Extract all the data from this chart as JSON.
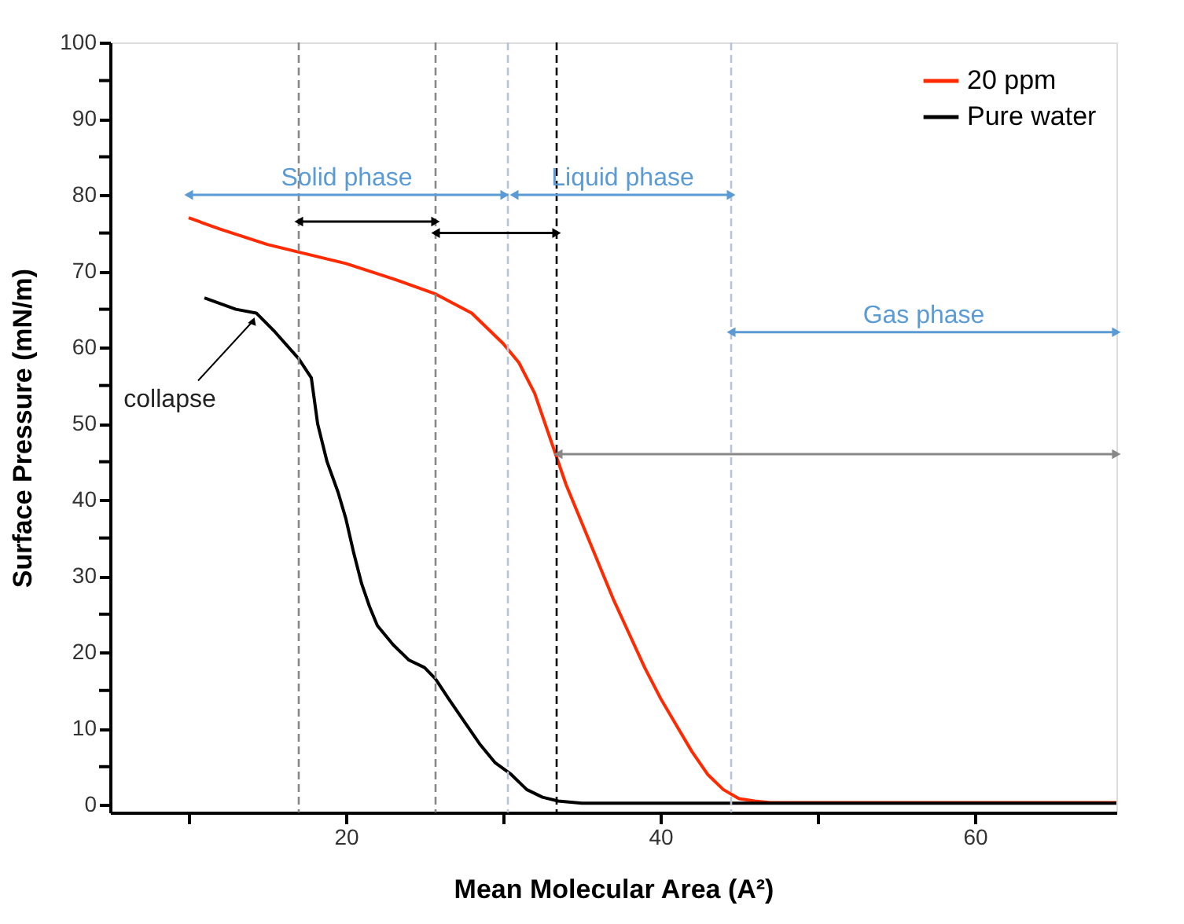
{
  "chart_data": {
    "type": "line",
    "xlabel": "Mean Molecular Area (A²)",
    "ylabel": "Surface Pressure (mN/m)",
    "xlim": [
      5,
      69
    ],
    "ylim": [
      -1,
      100
    ],
    "xticks": [
      {
        "value": 10,
        "label": null
      },
      20,
      {
        "value": 30,
        "label": null
      },
      40,
      {
        "value": 50,
        "label": null
      },
      60
    ],
    "yticks": [
      0,
      {
        "value": 5,
        "label": null
      },
      10,
      {
        "value": 15,
        "label": null
      },
      20,
      {
        "value": 25,
        "label": null
      },
      30,
      {
        "value": 35,
        "label": null
      },
      40,
      {
        "value": 45,
        "label": null
      },
      50,
      {
        "value": 55,
        "label": null
      },
      60,
      {
        "value": 65,
        "label": null
      },
      70,
      {
        "value": 75,
        "label": null
      },
      80,
      {
        "value": 85,
        "label": null
      },
      90,
      {
        "value": 95,
        "label": null
      },
      100
    ],
    "grid": false,
    "legend": "top right",
    "marker": "none",
    "line_style": "solid",
    "series": [
      {
        "name": "20 ppm",
        "color": "#ff2a00",
        "x": [
          10,
          12,
          15,
          17,
          20,
          23,
          25.7,
          28,
          30,
          31,
          32,
          33,
          34,
          35,
          36,
          37,
          38,
          39,
          40,
          41,
          42,
          43,
          44,
          45,
          46,
          47,
          69
        ],
        "values": [
          77,
          75.5,
          73.5,
          72.5,
          71,
          69,
          67,
          64.5,
          60.5,
          58,
          54,
          48,
          42,
          37,
          32,
          27,
          22.5,
          18,
          14,
          10.5,
          7,
          4,
          2,
          0.8,
          0.5,
          0.3,
          0.3
        ]
      },
      {
        "name": "Pure water",
        "color": "#000000",
        "x": [
          11,
          13,
          14.3,
          15.5,
          17,
          17.8,
          18.2,
          18.8,
          19.5,
          20,
          20.5,
          21,
          21.5,
          22,
          23,
          24,
          25,
          25.7,
          26.5,
          27.5,
          28.5,
          29.5,
          30.5,
          31.5,
          32.5,
          33.5,
          35,
          69
        ],
        "values": [
          66.5,
          65,
          64.5,
          62,
          58.5,
          56,
          50,
          45,
          41,
          37.5,
          33,
          29,
          26,
          23.5,
          21,
          19,
          18,
          16.5,
          14,
          11,
          8,
          5.5,
          4,
          2,
          1,
          0.5,
          0.2,
          0.2
        ]
      },
      {
        "name": "Solid phase",
        "color": "#5b9bd5",
        "marker": "triangle",
        "x": [
          10,
          30.1
        ],
        "values": [
          80,
          80
        ]
      },
      {
        "name": "Liquid phase",
        "color": "#5b9bd5",
        "marker": "triangle",
        "x": [
          30.7,
          44.5
        ],
        "values": [
          80,
          80
        ]
      },
      {
        "name": "Gas phase",
        "color": "#5b9bd5",
        "marker": "triangle",
        "x": [
          44.5,
          69
        ],
        "values": [
          62,
          62
        ]
      },
      {
        "color": "#000000",
        "marker": "triangle",
        "x": [
          17,
          25.7
        ],
        "values": [
          76.5,
          76.5
        ]
      },
      {
        "color": "#000000",
        "marker": "triangle",
        "x": [
          25.7,
          33.4
        ],
        "values": [
          75,
          75
        ]
      },
      {
        "color": "#888888",
        "marker": "triangle",
        "x": [
          33.5,
          69
        ],
        "values": [
          46,
          46
        ]
      }
    ],
    "ref_lines": [
      {
        "axis": "x",
        "value": 17,
        "color": "#888888",
        "line_style": "dashed"
      },
      {
        "axis": "x",
        "value": 25.7,
        "color": "#888888",
        "line_style": "dashed"
      },
      {
        "axis": "x",
        "value": 30.3,
        "color": "#b8c4d6",
        "line_style": "dashed"
      },
      {
        "axis": "x",
        "value": 33.4,
        "color": "#000000",
        "line_style": "dashed"
      },
      {
        "axis": "x",
        "value": 44.5,
        "color": "#b8c4d6",
        "line_style": "dashed"
      }
    ],
    "annotations": [
      {
        "text": "collapse",
        "x": 14.3,
        "y": 64.5
      }
    ]
  }
}
